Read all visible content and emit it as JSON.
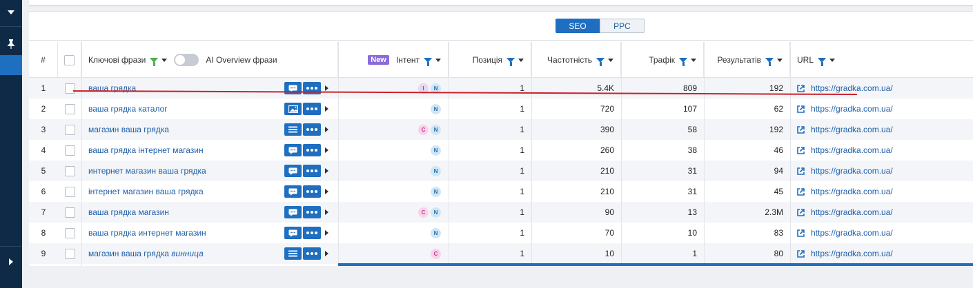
{
  "tabs": {
    "seo": "SEO",
    "ppc": "PPC"
  },
  "columns": {
    "num": "#",
    "keyword": "Ключові фрази",
    "ai_overview": "AI Overview фрази",
    "new_badge": "New",
    "intent": "Інтент",
    "position": "Позиція",
    "volume": "Частотність",
    "traffic": "Трафік",
    "results": "Результатів",
    "url": "URL"
  },
  "rows": [
    {
      "n": "1",
      "keyword": "ваша грядка",
      "keyword_suffix": "",
      "serp_icon": "comment-icon",
      "intents": [
        "I",
        "N"
      ],
      "position": "1",
      "volume": "5.4K",
      "traffic": "809",
      "results": "192",
      "url": "https://gradka.com.ua/"
    },
    {
      "n": "2",
      "keyword": "ваша грядка каталог",
      "keyword_suffix": "",
      "serp_icon": "image-icon",
      "intents": [
        "N"
      ],
      "position": "1",
      "volume": "720",
      "traffic": "107",
      "results": "62",
      "url": "https://gradka.com.ua/"
    },
    {
      "n": "3",
      "keyword": "магазин ваша грядка",
      "keyword_suffix": "",
      "serp_icon": "list-icon",
      "intents": [
        "C",
        "N"
      ],
      "position": "1",
      "volume": "390",
      "traffic": "58",
      "results": "192",
      "url": "https://gradka.com.ua/"
    },
    {
      "n": "4",
      "keyword": "ваша грядка інтернет магазин",
      "keyword_suffix": "",
      "serp_icon": "comment-icon",
      "intents": [
        "N"
      ],
      "position": "1",
      "volume": "260",
      "traffic": "38",
      "results": "46",
      "url": "https://gradka.com.ua/"
    },
    {
      "n": "5",
      "keyword": "интернет магазин ваша грядка",
      "keyword_suffix": "",
      "serp_icon": "comment-icon",
      "intents": [
        "N"
      ],
      "position": "1",
      "volume": "210",
      "traffic": "31",
      "results": "94",
      "url": "https://gradka.com.ua/"
    },
    {
      "n": "6",
      "keyword": "інтернет магазин ваша грядка",
      "keyword_suffix": "",
      "serp_icon": "comment-icon",
      "intents": [
        "N"
      ],
      "position": "1",
      "volume": "210",
      "traffic": "31",
      "results": "45",
      "url": "https://gradka.com.ua/"
    },
    {
      "n": "7",
      "keyword": "ваша грядка магазин",
      "keyword_suffix": "",
      "serp_icon": "comment-icon",
      "intents": [
        "C",
        "N"
      ],
      "position": "1",
      "volume": "90",
      "traffic": "13",
      "results": "2.3M",
      "url": "https://gradka.com.ua/"
    },
    {
      "n": "8",
      "keyword": "ваша грядка интернет магазин",
      "keyword_suffix": "",
      "serp_icon": "comment-icon",
      "intents": [
        "N"
      ],
      "position": "1",
      "volume": "70",
      "traffic": "10",
      "results": "83",
      "url": "https://gradka.com.ua/"
    },
    {
      "n": "9",
      "keyword": "магазин ваша грядка",
      "keyword_suffix": "винница",
      "serp_icon": "list-icon",
      "intents": [
        "C"
      ],
      "position": "1",
      "volume": "10",
      "traffic": "1",
      "results": "80",
      "url": "https://gradka.com.ua/"
    }
  ],
  "colors": {
    "accent": "#1f6fc1",
    "sidebar": "#0e2a47",
    "annotation": "#cc1f2a"
  }
}
